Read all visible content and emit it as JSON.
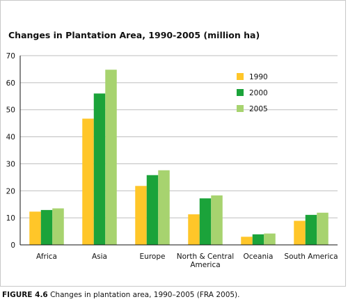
{
  "chart_data": {
    "type": "bar",
    "title": "Changes in Plantation Area, 1990-2005 (million ha)",
    "categories": [
      "Africa",
      "Asia",
      "Europe",
      "North & Central America",
      "Oceania",
      "South America"
    ],
    "category_label_lines": [
      [
        "Africa"
      ],
      [
        "Asia"
      ],
      [
        "Europe"
      ],
      [
        "North & Central",
        "America"
      ],
      [
        "Oceania"
      ],
      [
        "South America"
      ]
    ],
    "series": [
      {
        "name": "1990",
        "color": "#FFC629",
        "values": [
          12.3,
          46.7,
          21.8,
          11.3,
          3.0,
          8.9
        ]
      },
      {
        "name": "2000",
        "color": "#1BA33A",
        "values": [
          12.9,
          56.0,
          25.8,
          17.2,
          3.9,
          11.1
        ]
      },
      {
        "name": "2005",
        "color": "#A7D36F",
        "values": [
          13.5,
          64.8,
          27.6,
          18.3,
          4.2,
          11.9
        ]
      }
    ],
    "ylim": [
      0,
      70
    ],
    "yticks": [
      0,
      10,
      20,
      30,
      40,
      50,
      60,
      70
    ],
    "grid": true,
    "legend_position": "top-right"
  },
  "caption": {
    "label": "FIGURE 4.6",
    "text": " Changes in plantation area, 1990–2005 (FRA 2005)."
  }
}
